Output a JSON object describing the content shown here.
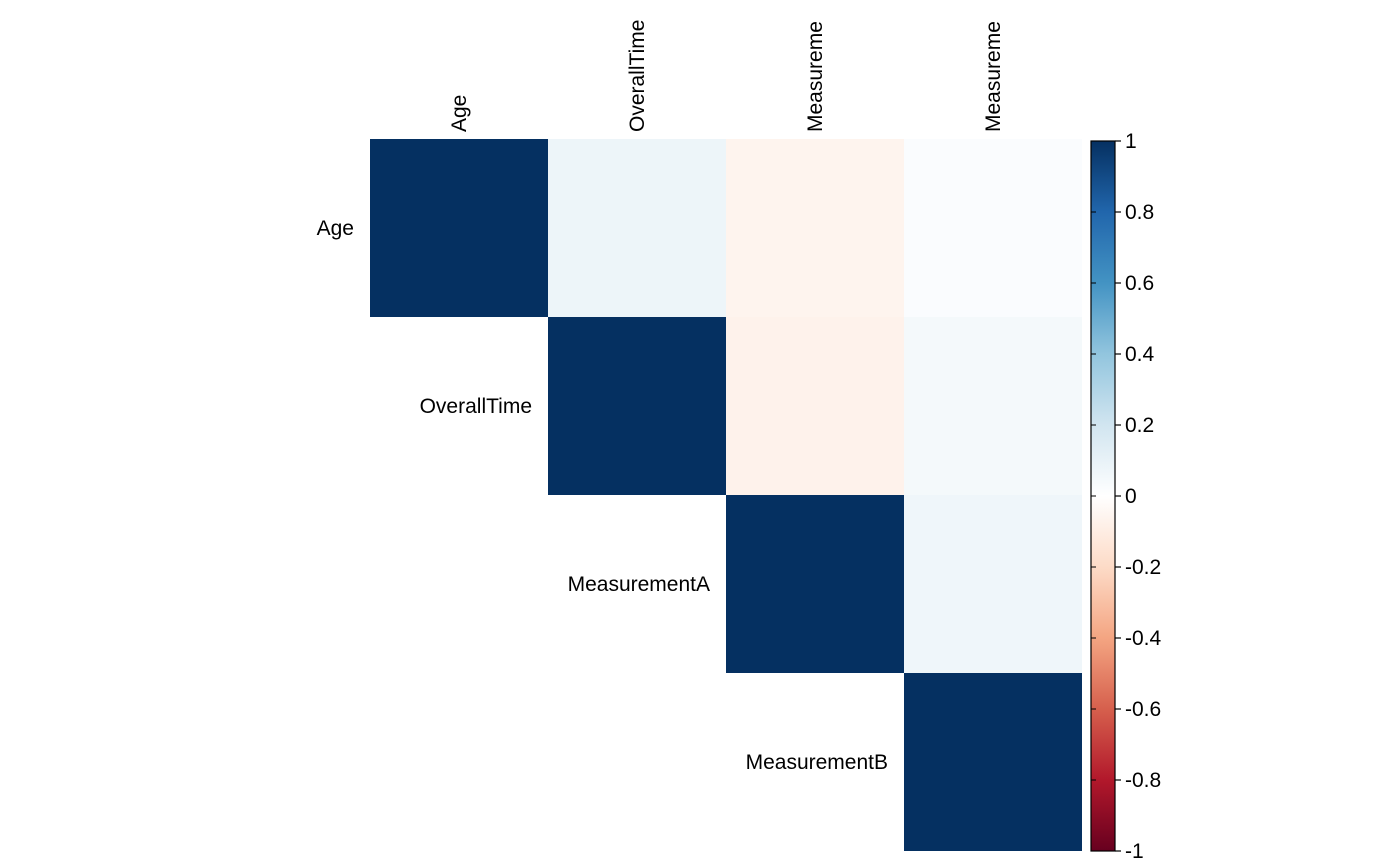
{
  "chart_data": {
    "type": "heatmap",
    "layout": "upper-triangle",
    "title": "",
    "variables": [
      "Age",
      "OverallTime",
      "MeasurementA",
      "MeasurementB"
    ],
    "column_labels_shown": [
      "Age",
      "OverallTime",
      "Measureme",
      "Measureme"
    ],
    "matrix": [
      [
        1.0,
        0.08,
        -0.06,
        0.02
      ],
      [
        0.08,
        1.0,
        -0.07,
        0.05
      ],
      [
        -0.06,
        -0.07,
        1.0,
        0.07
      ],
      [
        0.02,
        0.05,
        0.07,
        1.0
      ]
    ],
    "color_scale": {
      "min": -1,
      "max": 1,
      "stops": [
        "#67001F",
        "#B2182B",
        "#D6604D",
        "#F4A582",
        "#FDDBC7",
        "#FFFFFF",
        "#D1E5F0",
        "#92C5DE",
        "#4393C3",
        "#2166AC",
        "#053061"
      ]
    },
    "colorbar": {
      "position": "right",
      "ticks": [
        1,
        0.8,
        0.6,
        0.4,
        0.2,
        0,
        -0.2,
        -0.4,
        -0.6,
        -0.8,
        -1
      ],
      "tick_labels": [
        "1",
        "0.8",
        "0.6",
        "0.4",
        "0.2",
        "0",
        "-0.2",
        "-0.4",
        "-0.6",
        "-0.8",
        "-1"
      ]
    }
  }
}
